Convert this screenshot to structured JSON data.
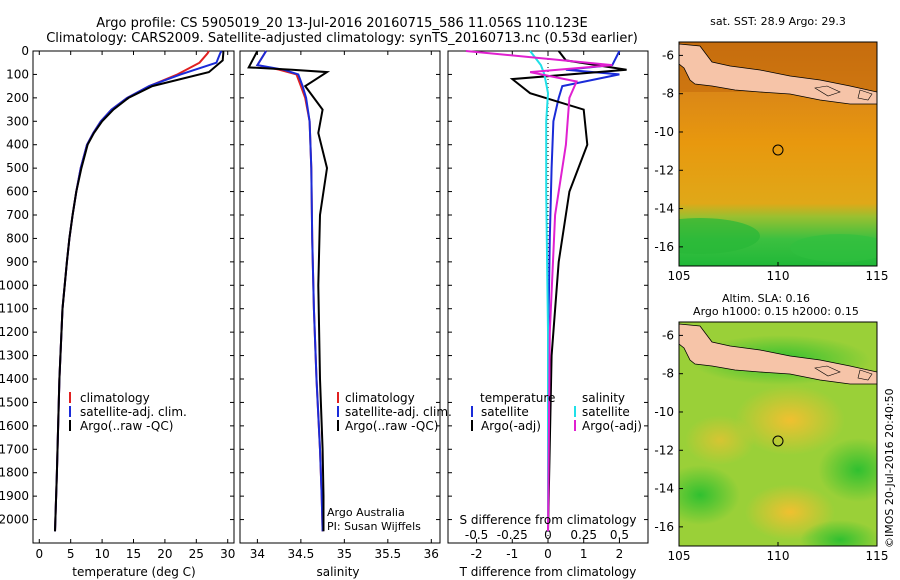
{
  "header": {
    "title_line1": "Argo profile: CS 5905019_20 13-Jul-2016 20160715_586 11.056S 110.123E",
    "title_line2": "Climatology: CARS2009. Satellite-adjusted climatology: synTS_20160713.nc (0.53d earlier)"
  },
  "colors": {
    "climatology": "#e02020",
    "satellite": "#1a2bd8",
    "argo": "#000000",
    "sal_satellite": "#20e0e8",
    "sal_argo": "#e020d0"
  },
  "chart_data": [
    {
      "type": "line",
      "id": "temperature",
      "xlabel": "temperature (deg C)",
      "ylabel": "",
      "xlim": [
        -1,
        31
      ],
      "ylim": [
        2100,
        0
      ],
      "xticks": [
        0,
        5,
        10,
        15,
        20,
        25,
        30
      ],
      "yticks": [
        0,
        100,
        200,
        300,
        400,
        500,
        600,
        700,
        800,
        900,
        1000,
        1100,
        1200,
        1300,
        1400,
        1500,
        1600,
        1700,
        1800,
        1900,
        2000
      ],
      "legend": {
        "position": "middle-left",
        "entries": [
          "climatology",
          "satellite-adj. clim.",
          "Argo(..raw -QC)"
        ]
      },
      "series": [
        {
          "name": "climatology",
          "color": "#e02020",
          "x": [
            27.0,
            26.8,
            25.5,
            22.0,
            17.5,
            14.0,
            11.5,
            9.8,
            8.6,
            7.6,
            6.6,
            5.9,
            5.3,
            4.8,
            4.4,
            3.7,
            3.2,
            2.8,
            2.5
          ],
          "y": [
            0,
            10,
            50,
            100,
            150,
            200,
            250,
            300,
            350,
            400,
            500,
            600,
            700,
            800,
            900,
            1100,
            1400,
            1800,
            2050
          ]
        },
        {
          "name": "satellite-adj. clim.",
          "color": "#1a2bd8",
          "x": [
            29.0,
            28.8,
            28.2,
            22.5,
            17.5,
            14.0,
            11.5,
            9.8,
            8.6,
            7.6,
            6.6,
            5.9,
            5.3,
            4.8,
            4.4,
            3.7,
            3.2,
            2.8,
            2.5
          ],
          "y": [
            0,
            10,
            50,
            100,
            150,
            200,
            250,
            300,
            350,
            400,
            500,
            600,
            700,
            800,
            900,
            1100,
            1400,
            1800,
            2050
          ]
        },
        {
          "name": "Argo(..raw -QC)",
          "color": "#000000",
          "x": [
            29.3,
            29.3,
            29.2,
            27.0,
            18.0,
            14.2,
            11.8,
            10.0,
            8.7,
            7.7,
            6.7,
            5.9,
            5.3,
            4.8,
            4.4,
            3.7,
            3.2,
            2.8,
            2.5
          ],
          "y": [
            0,
            10,
            40,
            90,
            150,
            200,
            250,
            300,
            350,
            400,
            500,
            600,
            700,
            800,
            900,
            1100,
            1400,
            1800,
            2050
          ]
        }
      ]
    },
    {
      "type": "line",
      "id": "salinity",
      "xlabel": "salinity",
      "xlim": [
        33.8,
        36.1
      ],
      "ylim": [
        2100,
        0
      ],
      "xticks": [
        34,
        34.5,
        35,
        35.5,
        36
      ],
      "legend": {
        "position": "middle-right",
        "entries": [
          "climatology",
          "satellite-adj. clim.",
          "Argo(..raw -QC)"
        ]
      },
      "annotations": [
        "Argo Australia",
        "PI: Susan Wijffels"
      ],
      "series": [
        {
          "name": "climatology",
          "color": "#e02020",
          "x": [
            34.1,
            34.0,
            34.25,
            34.45,
            34.5,
            34.55,
            34.6,
            34.62,
            34.63,
            34.65,
            34.68,
            34.72,
            34.74,
            34.75
          ],
          "y": [
            0,
            60,
            80,
            100,
            150,
            200,
            300,
            500,
            800,
            1100,
            1400,
            1700,
            1900,
            2050
          ]
        },
        {
          "name": "satellite-adj. clim.",
          "color": "#1a2bd8",
          "x": [
            34.1,
            34.0,
            34.3,
            34.47,
            34.52,
            34.56,
            34.6,
            34.62,
            34.63,
            34.65,
            34.68,
            34.72,
            34.74,
            34.75
          ],
          "y": [
            0,
            60,
            80,
            100,
            150,
            200,
            300,
            500,
            800,
            1100,
            1400,
            1700,
            1900,
            2050
          ]
        },
        {
          "name": "Argo(..raw -QC)",
          "color": "#000000",
          "x": [
            34.0,
            33.9,
            34.4,
            34.8,
            34.55,
            34.75,
            34.7,
            34.8,
            34.72,
            34.7,
            34.72,
            34.75,
            34.76,
            34.76
          ],
          "y": [
            0,
            70,
            80,
            90,
            150,
            250,
            350,
            500,
            700,
            1000,
            1400,
            1700,
            1900,
            2050
          ]
        }
      ]
    },
    {
      "type": "line",
      "id": "difference",
      "xlabel": "T difference from climatology",
      "xlabel_top": "S difference from climatology",
      "xlim": [
        -2.8,
        2.8
      ],
      "ylim": [
        2100,
        0
      ],
      "xticks": [
        -2,
        -1,
        0,
        1,
        2
      ],
      "s_ticks": [
        {
          "v": -0.5,
          "label": "-0.5"
        },
        {
          "v": -0.25,
          "label": "-0.25"
        },
        {
          "v": 0,
          "label": "0"
        },
        {
          "v": 0.25,
          "label": "0.25"
        },
        {
          "v": 0.5,
          "label": "0.5"
        }
      ],
      "legend": {
        "position": "middle",
        "headers": [
          "temperature",
          "salinity"
        ],
        "entries": [
          "satellite",
          "Argo(-adj)",
          "satellite",
          "Argo(-adj)"
        ]
      },
      "series": [
        {
          "name": "temperature satellite",
          "color": "#1a2bd8",
          "x": [
            2.0,
            1.8,
            0.5,
            2.0,
            0.4,
            0.3,
            0.15,
            0.1,
            0.05,
            0.0,
            0.0
          ],
          "y": [
            0,
            60,
            80,
            100,
            150,
            200,
            300,
            500,
            800,
            1300,
            2050
          ]
        },
        {
          "name": "temperature Argo(-adj)",
          "color": "#000000",
          "x": [
            0.3,
            0.5,
            2.2,
            -1.0,
            -0.5,
            1.0,
            1.1,
            0.6,
            0.3,
            0.1,
            0.0
          ],
          "y": [
            0,
            40,
            80,
            120,
            180,
            250,
            400,
            600,
            900,
            1300,
            2050
          ]
        },
        {
          "name": "salinity satellite",
          "color": "#20e0e8",
          "x": [
            -0.5,
            -0.2,
            -0.1,
            0.0,
            -0.05,
            -0.05,
            0.0,
            0.0
          ],
          "y": [
            0,
            60,
            100,
            180,
            300,
            600,
            1200,
            2050
          ]
        },
        {
          "name": "salinity Argo(-adj)",
          "color": "#e020d0",
          "x": [
            -2.3,
            1.8,
            -0.5,
            0.8,
            0.6,
            0.5,
            0.2,
            0.05,
            0.0
          ],
          "y": [
            0,
            60,
            90,
            130,
            200,
            400,
            700,
            1200,
            2050
          ]
        }
      ]
    },
    {
      "type": "heatmap",
      "id": "sst_map",
      "title": "sat. SST: 28.9 Argo: 29.3",
      "xlim": [
        105,
        115
      ],
      "ylim": [
        -17,
        -5.3
      ],
      "xticks": [
        105,
        110,
        115
      ],
      "yticks": [
        -6,
        -8,
        -10,
        -12,
        -14,
        -16
      ],
      "marker": {
        "lon": 110.123,
        "lat": -11.056
      }
    },
    {
      "type": "heatmap",
      "id": "sla_map",
      "title_line1": "Altim. SLA: 0.16",
      "title_line2": "Argo h1000: 0.15 h2000: 0.15",
      "xlim": [
        105,
        115
      ],
      "ylim": [
        -17,
        -5.3
      ],
      "xticks": [
        105,
        110,
        115
      ],
      "yticks": [
        -6,
        -8,
        -10,
        -12,
        -14,
        -16
      ],
      "marker": {
        "lon": 110.123,
        "lat": -11.056
      }
    }
  ],
  "credit": "©IMOS 20-Jul-2016 20:40:50"
}
